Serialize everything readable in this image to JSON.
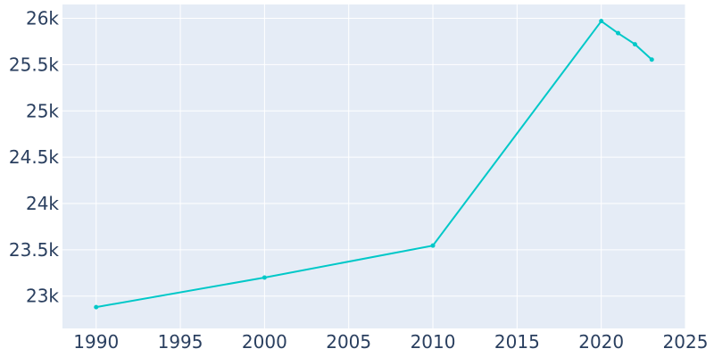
{
  "chart_data": {
    "type": "line",
    "x": [
      1990,
      2000,
      2010,
      2020,
      2021,
      2022,
      2023
    ],
    "series": [
      {
        "values": [
          22880,
          23200,
          23545,
          25970,
          25840,
          25720,
          25555
        ]
      }
    ],
    "xlim": [
      1988,
      2025
    ],
    "ylim": [
      22650,
      26150
    ],
    "x_ticks": [
      1990,
      1995,
      2000,
      2005,
      2010,
      2015,
      2020,
      2025
    ],
    "x_tick_labels": [
      "1990",
      "1995",
      "2000",
      "2005",
      "2010",
      "2015",
      "2020",
      "2025"
    ],
    "y_ticks": [
      23000,
      23500,
      24000,
      24500,
      25000,
      25500,
      26000
    ],
    "y_tick_labels": [
      "23k",
      "23.5k",
      "24k",
      "24.5k",
      "25k",
      "25.5k",
      "26k"
    ],
    "grid": true,
    "legend": "none",
    "colors": {
      "line": "#00c8c8",
      "plot_background": "#e5ecf6",
      "grid": "#ffffff",
      "tick_text": "#2a3f5f"
    }
  }
}
